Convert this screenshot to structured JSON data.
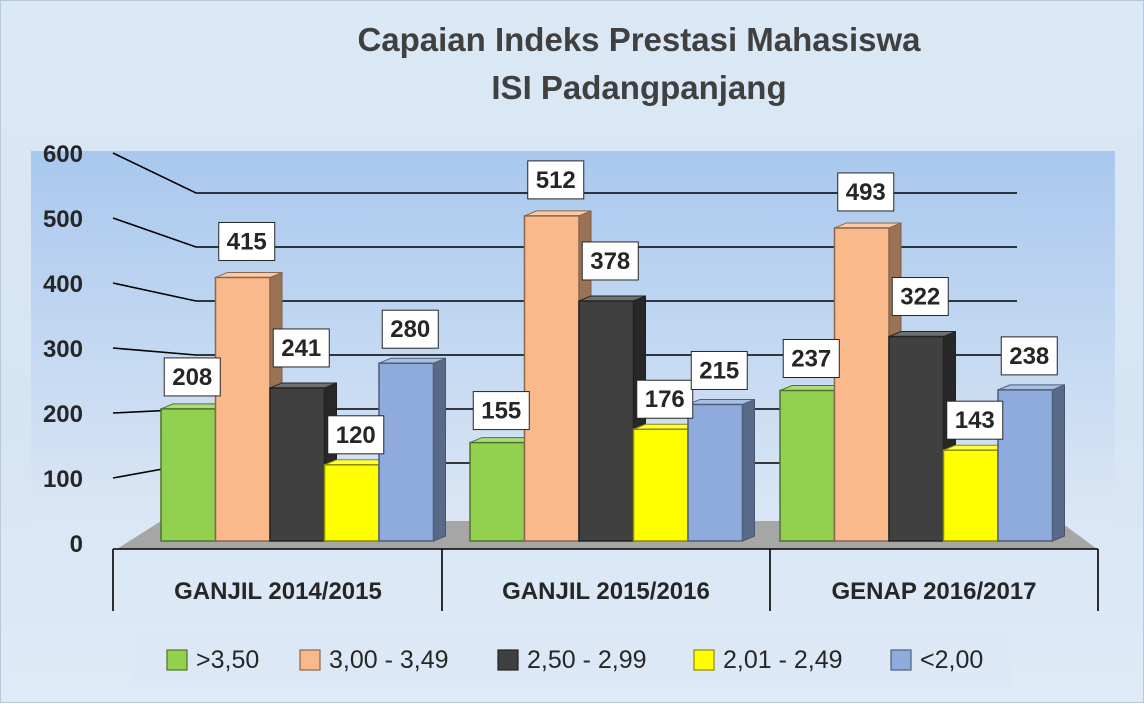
{
  "chart_data": {
    "type": "bar",
    "title": "Capaian Indeks Prestasi Mahasiswa",
    "subtitle": "ISI Padangpanjang",
    "categories": [
      "GANJIL 2014/2015",
      "GANJIL 2015/2016",
      "GENAP 2016/2017"
    ],
    "series": [
      {
        "name": ">3,50",
        "values": [
          208,
          155,
          237
        ],
        "color": "#92d050"
      },
      {
        "name": "3,00 - 3,49",
        "values": [
          415,
          512,
          493
        ],
        "color": "#f9b98a"
      },
      {
        "name": "2,50 - 2,99",
        "values": [
          241,
          378,
          322
        ],
        "color": "#404040"
      },
      {
        "name": "2,01 - 2,49",
        "values": [
          120,
          176,
          143
        ],
        "color": "#ffff00"
      },
      {
        "name": "<2,00",
        "values": [
          280,
          215,
          238
        ],
        "color": "#8faadc"
      }
    ],
    "ylim": [
      0,
      600
    ],
    "yticks": [
      "0",
      "100",
      "200",
      "300",
      "400",
      "500",
      "600"
    ],
    "grid": true,
    "legend_position": "bottom",
    "data_labels": true,
    "style": "3d-clustered-column"
  }
}
